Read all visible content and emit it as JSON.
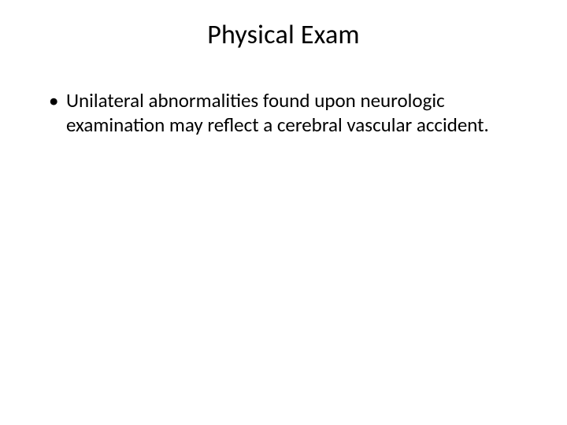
{
  "slide": {
    "title": "Physical Exam",
    "bullets": [
      {
        "marker": "•",
        "text": "Unilateral abnormalities found upon neurologic examination may reflect a cerebral vascular accident."
      }
    ]
  },
  "styling": {
    "background_color": "#ffffff",
    "text_color": "#000000",
    "title_fontsize": 34,
    "body_fontsize": 25,
    "font_family": "Calibri",
    "title_align": "center",
    "line_height": 1.22
  }
}
